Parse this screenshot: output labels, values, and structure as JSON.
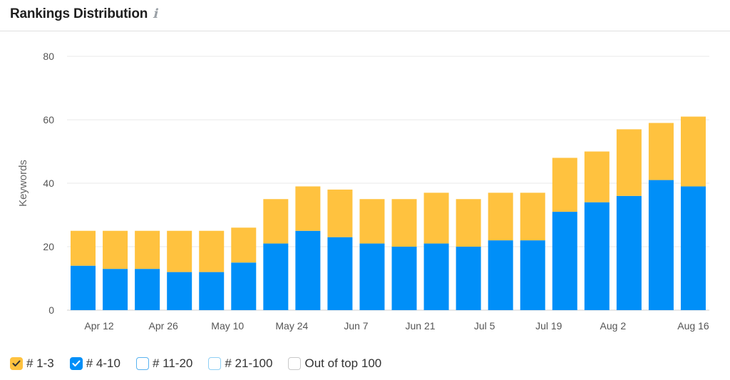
{
  "header": {
    "title": "Rankings Distribution",
    "info_icon": "ℹ"
  },
  "chart_data": {
    "type": "bar",
    "stacked": true,
    "title": "Rankings Distribution",
    "ylabel": "Keywords",
    "ylim": [
      0,
      80
    ],
    "yticks": [
      0,
      20,
      40,
      60,
      80
    ],
    "grid": true,
    "bars": 20,
    "xtick_labels": [
      "Apr 12",
      "Apr 26",
      "May 10",
      "May 24",
      "Jun 7",
      "Jun 21",
      "Jul 5",
      "Jul 19",
      "Aug 2",
      "Aug 16"
    ],
    "xtick_bar_index": [
      0.5,
      2.5,
      4.5,
      6.5,
      8.5,
      10.5,
      12.5,
      14.5,
      16.5,
      19
    ],
    "series": [
      {
        "name": "# 4-10",
        "color": "#008ff8",
        "values": [
          14,
          13,
          13,
          12,
          12,
          15,
          21,
          25,
          23,
          21,
          20,
          21,
          20,
          22,
          22,
          31,
          34,
          36,
          41,
          39
        ]
      },
      {
        "name": "# 1-3",
        "color": "#ffc23f",
        "values": [
          11,
          12,
          12,
          13,
          13,
          11,
          14,
          14,
          15,
          14,
          15,
          16,
          15,
          15,
          15,
          17,
          16,
          21,
          18,
          22
        ]
      }
    ]
  },
  "legend": [
    {
      "label": "# 1-3",
      "checked": true,
      "color": "#ffc23f"
    },
    {
      "label": "# 4-10",
      "checked": true,
      "color": "#008ff8"
    },
    {
      "label": "# 11-20",
      "checked": false,
      "color": "#5ab3f0"
    },
    {
      "label": "# 21-100",
      "checked": false,
      "color": "#8fd0f5"
    },
    {
      "label": "Out of top 100",
      "checked": false,
      "color": "#c9c9c9"
    }
  ]
}
